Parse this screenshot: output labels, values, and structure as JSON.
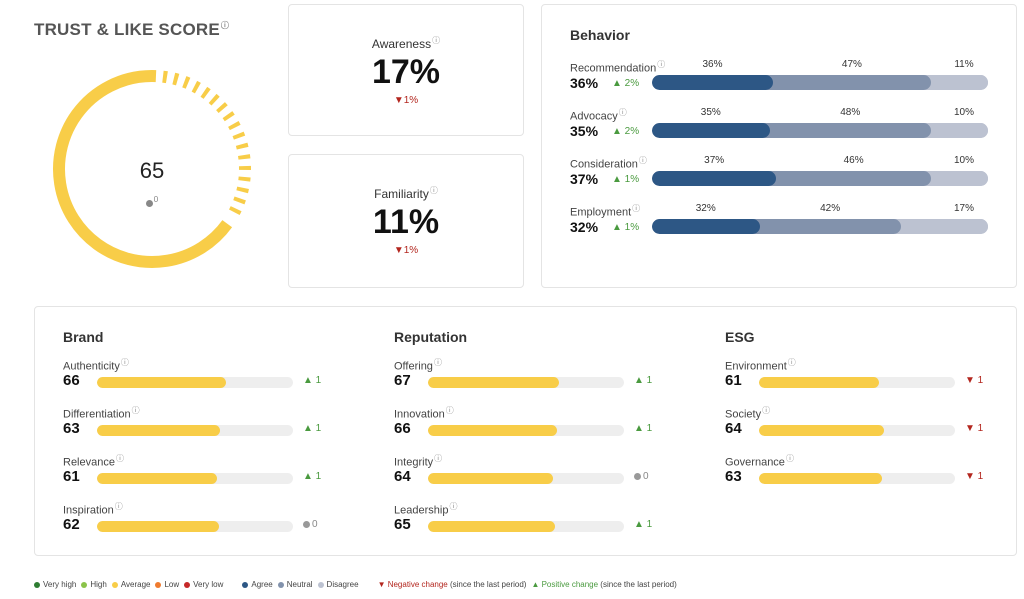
{
  "trust": {
    "title": "TRUST & LIKE SCORE",
    "info": "?",
    "score": "65",
    "change": "0",
    "score_fraction": 0.65
  },
  "awareness": {
    "label": "Awareness",
    "info": "?",
    "value": "17%",
    "change": "▼1%"
  },
  "familiarity": {
    "label": "Familiarity",
    "info": "?",
    "value": "11%",
    "change": "▼1%"
  },
  "behavior": {
    "title": "Behavior",
    "rows": [
      {
        "name": "Recommendation",
        "value": "36%",
        "change": "▲ 2%",
        "agree": 36,
        "neutral": 47,
        "disagree": 11,
        "agree_label": "36%",
        "neutral_label": "47%",
        "disagree_label": "11%"
      },
      {
        "name": "Advocacy",
        "value": "35%",
        "change": "▲ 2%",
        "agree": 35,
        "neutral": 48,
        "disagree": 10,
        "agree_label": "35%",
        "neutral_label": "48%",
        "disagree_label": "10%"
      },
      {
        "name": "Consideration",
        "value": "37%",
        "change": "▲ 1%",
        "agree": 37,
        "neutral": 46,
        "disagree": 10,
        "agree_label": "37%",
        "neutral_label": "46%",
        "disagree_label": "10%"
      },
      {
        "name": "Employment",
        "value": "32%",
        "change": "▲ 1%",
        "agree": 32,
        "neutral": 42,
        "disagree": 17,
        "agree_label": "32%",
        "neutral_label": "42%",
        "disagree_label": "17%"
      }
    ]
  },
  "groups": [
    {
      "title": "Brand",
      "rows": [
        {
          "name": "Authenticity",
          "value": "66",
          "score": 66,
          "change": "▲ 1",
          "dir": "up"
        },
        {
          "name": "Differentiation",
          "value": "63",
          "score": 63,
          "change": "▲ 1",
          "dir": "up"
        },
        {
          "name": "Relevance",
          "value": "61",
          "score": 61,
          "change": "▲ 1",
          "dir": "up"
        },
        {
          "name": "Inspiration",
          "value": "62",
          "score": 62,
          "change": "0",
          "dir": "neutral"
        }
      ]
    },
    {
      "title": "Reputation",
      "rows": [
        {
          "name": "Offering",
          "value": "67",
          "score": 67,
          "change": "▲ 1",
          "dir": "up"
        },
        {
          "name": "Innovation",
          "value": "66",
          "score": 66,
          "change": "▲ 1",
          "dir": "up"
        },
        {
          "name": "Integrity",
          "value": "64",
          "score": 64,
          "change": "0",
          "dir": "neutral"
        },
        {
          "name": "Leadership",
          "value": "65",
          "score": 65,
          "change": "▲ 1",
          "dir": "up"
        }
      ]
    },
    {
      "title": "ESG",
      "rows": [
        {
          "name": "Environment",
          "value": "61",
          "score": 61,
          "change": "▼ 1",
          "dir": "down"
        },
        {
          "name": "Society",
          "value": "64",
          "score": 64,
          "change": "▼ 1",
          "dir": "down"
        },
        {
          "name": "Governance",
          "value": "63",
          "score": 63,
          "change": "▼ 1",
          "dir": "down"
        }
      ]
    }
  ],
  "legend": {
    "levels": [
      {
        "label": "Very high",
        "color": "#2e7d32"
      },
      {
        "label": "High",
        "color": "#8bc34a"
      },
      {
        "label": "Average",
        "color": "#f8cd48"
      },
      {
        "label": "Low",
        "color": "#ef7b2f"
      },
      {
        "label": "Very low",
        "color": "#c62828"
      }
    ],
    "opinions": [
      {
        "label": "Agree",
        "color": "#2d5785"
      },
      {
        "label": "Neutral",
        "color": "#8292ac"
      },
      {
        "label": "Disagree",
        "color": "#bcc2d1"
      }
    ],
    "negative_label": "▼ Negative change",
    "negative_note": " (since the last period)",
    "positive_label": "▲ Positive change",
    "positive_note": " (since the last period)"
  },
  "colors": {
    "gauge": "#f8cd48",
    "bar_fill": "#f8cd48",
    "track": "#eeeeee"
  }
}
